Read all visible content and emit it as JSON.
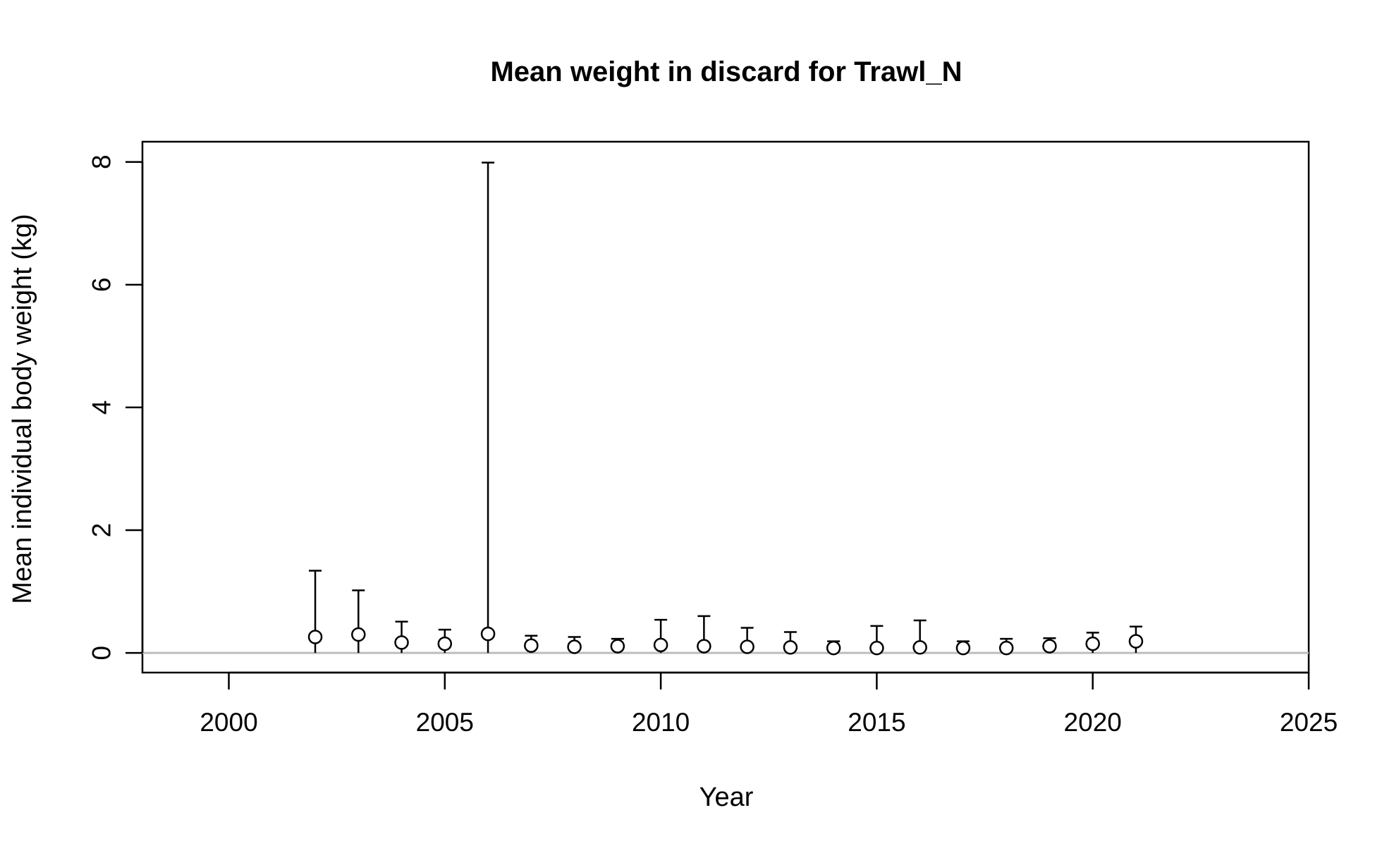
{
  "chart_data": {
    "type": "scatter",
    "title": "Mean weight in discard for Trawl_N",
    "xlabel": "Year",
    "ylabel": "Mean individual body weight (kg)",
    "xlim": [
      1998,
      2025
    ],
    "ylim": [
      -0.32,
      8.33
    ],
    "x_ticks": [
      2000,
      2005,
      2010,
      2015,
      2020,
      2025
    ],
    "y_ticks": [
      0,
      2,
      4,
      6,
      8
    ],
    "reference_line": {
      "y": 0,
      "color": "#bdbdbd"
    },
    "grid": false,
    "series": [
      {
        "x": [
          2002,
          2003,
          2004,
          2005,
          2006,
          2007,
          2008,
          2009,
          2010,
          2011,
          2012,
          2013,
          2014,
          2015,
          2016,
          2017,
          2018,
          2019,
          2020,
          2021
        ],
        "y": [
          0.26,
          0.3,
          0.17,
          0.15,
          0.31,
          0.12,
          0.1,
          0.11,
          0.13,
          0.11,
          0.1,
          0.09,
          0.08,
          0.08,
          0.09,
          0.08,
          0.08,
          0.11,
          0.15,
          0.19
        ],
        "lower": [
          0.0,
          0.0,
          0.0,
          0.0,
          0.0,
          0.0,
          0.0,
          0.0,
          0.0,
          0.0,
          0.0,
          0.0,
          0.0,
          0.0,
          0.0,
          0.0,
          0.0,
          0.0,
          0.0,
          0.0
        ],
        "upper": [
          1.34,
          1.02,
          0.51,
          0.38,
          7.99,
          0.28,
          0.26,
          0.23,
          0.54,
          0.6,
          0.41,
          0.34,
          0.19,
          0.44,
          0.53,
          0.19,
          0.23,
          0.24,
          0.33,
          0.43
        ]
      }
    ]
  }
}
